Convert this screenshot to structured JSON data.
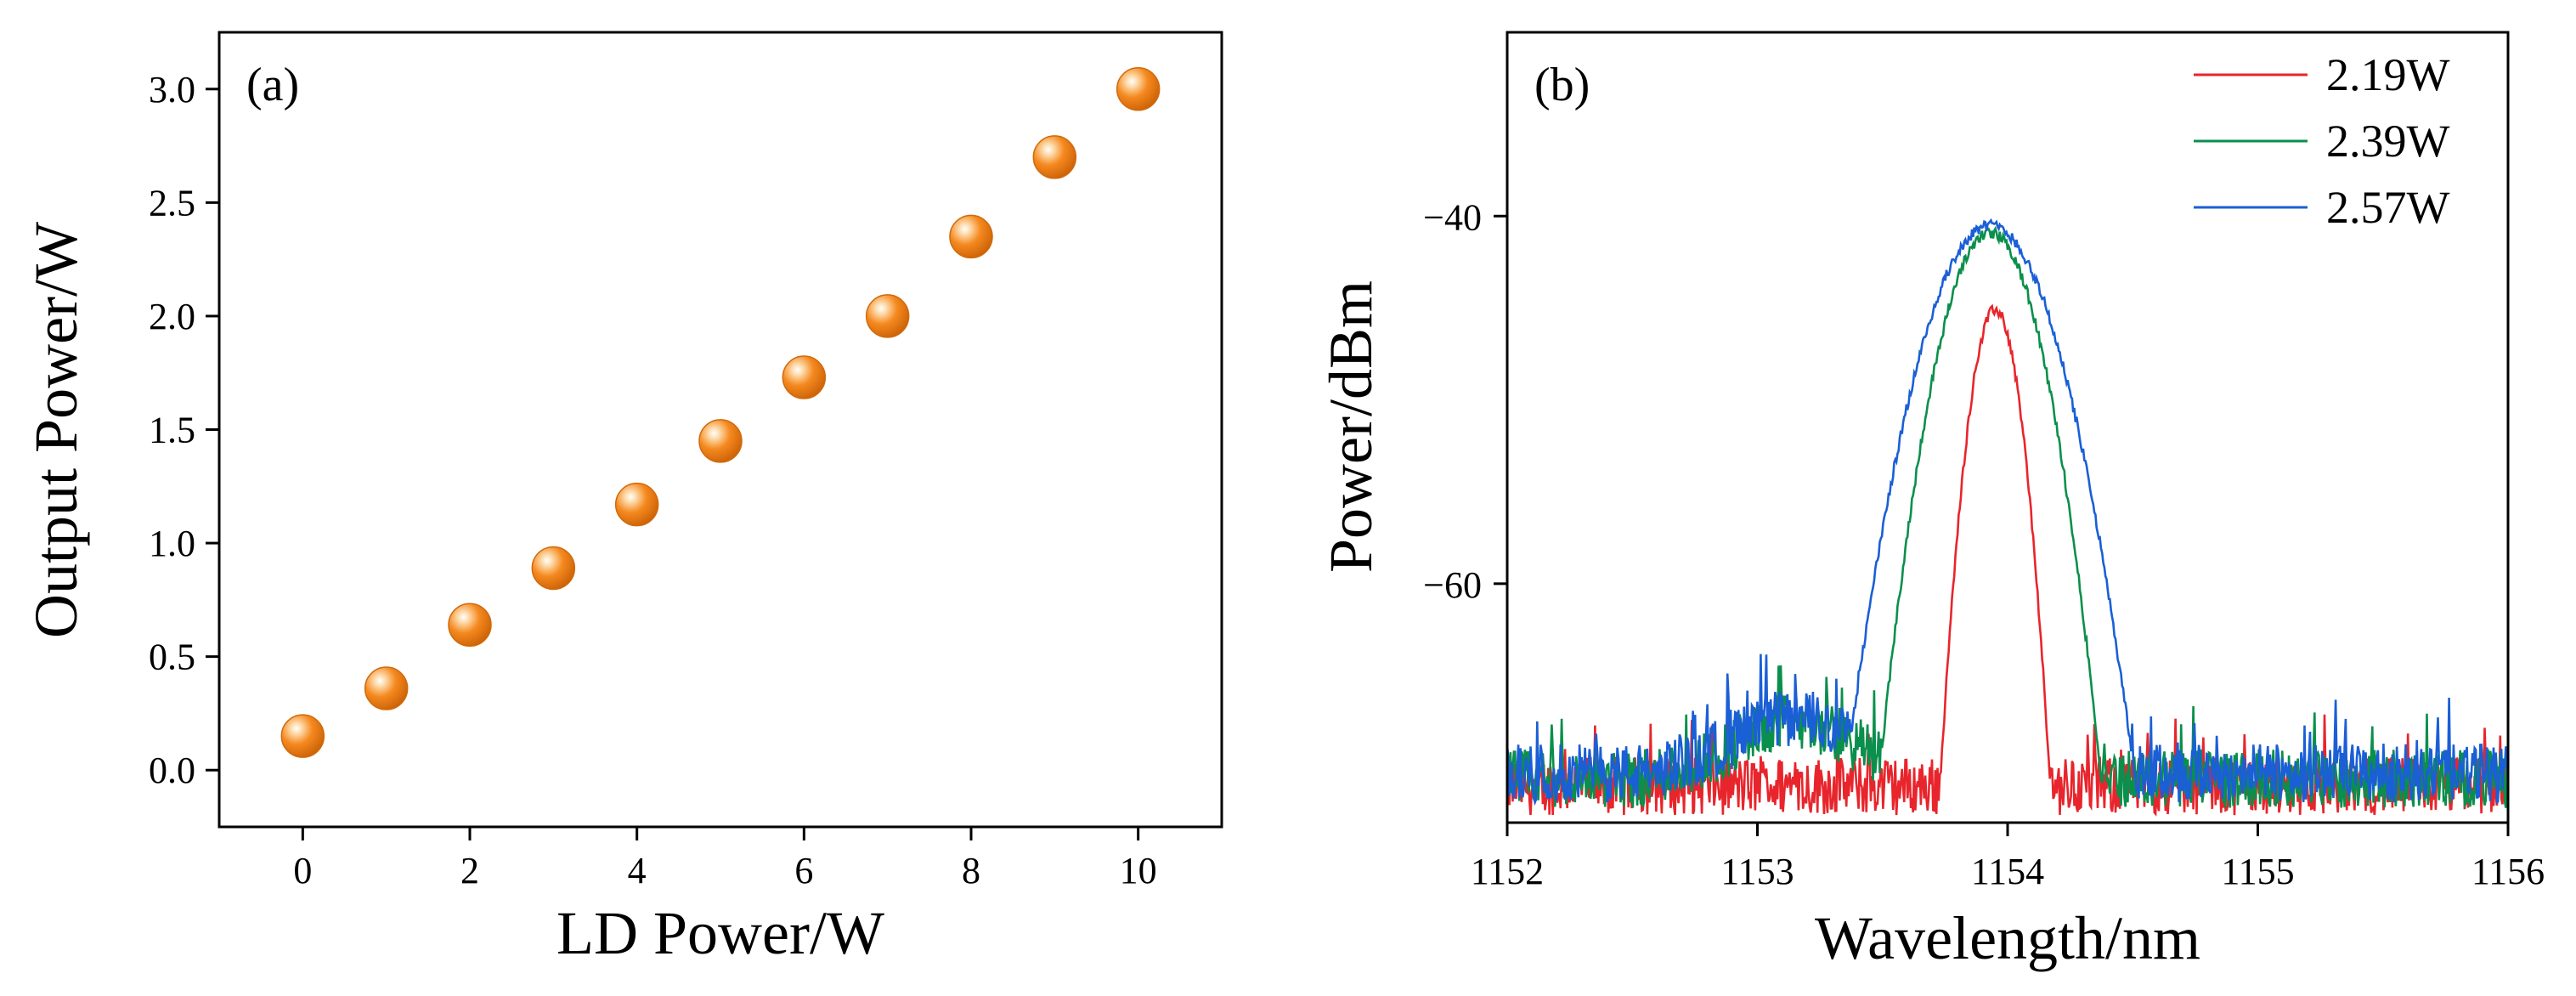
{
  "chart_data": [
    {
      "type": "scatter",
      "panel_label": "(a)",
      "xlabel": "LD Power/W",
      "ylabel": "Output Power/W",
      "xlim": [
        -1,
        11
      ],
      "ylim": [
        -0.25,
        3.25
      ],
      "xticks": [
        "0",
        "2",
        "4",
        "6",
        "8",
        "10"
      ],
      "yticks": [
        "0.0",
        "0.5",
        "1.0",
        "1.5",
        "2.0",
        "2.5",
        "3.0"
      ],
      "marker_color": "#f5891f",
      "points": [
        {
          "x": 0,
          "y": 0.15
        },
        {
          "x": 1,
          "y": 0.36
        },
        {
          "x": 2,
          "y": 0.64
        },
        {
          "x": 3,
          "y": 0.89
        },
        {
          "x": 4,
          "y": 1.17
        },
        {
          "x": 5,
          "y": 1.45
        },
        {
          "x": 6,
          "y": 1.73
        },
        {
          "x": 7,
          "y": 2.0
        },
        {
          "x": 8,
          "y": 2.35
        },
        {
          "x": 9,
          "y": 2.7
        },
        {
          "x": 10,
          "y": 3.0
        }
      ]
    },
    {
      "type": "line",
      "panel_label": "(b)",
      "xlabel": "Wavelength/nm",
      "ylabel": "Power/dBm",
      "xlim": [
        1152,
        1156
      ],
      "ylim": [
        -73,
        -30
      ],
      "xticks": [
        "1152",
        "1153",
        "1154",
        "1155",
        "1156"
      ],
      "yticks": [
        "−40",
        "−60"
      ],
      "ytick_values": [
        -40,
        -60
      ],
      "legend_position": "top-right",
      "series": [
        {
          "name": "2.19W",
          "color": "#e8252c",
          "peak_wavelength": 1153.95,
          "peak_power": -45.1,
          "half_width": 0.09,
          "noise_floor": -71.0
        },
        {
          "name": "2.39W",
          "color": "#0a8f4c",
          "peak_wavelength": 1153.93,
          "peak_power": -40.9,
          "half_width": 0.17,
          "noise_floor": -70.6
        },
        {
          "name": "2.57W",
          "color": "#1a5fd6",
          "peak_wavelength": 1153.93,
          "peak_power": -40.5,
          "half_width": 0.22,
          "noise_floor": -70.3
        }
      ]
    }
  ]
}
